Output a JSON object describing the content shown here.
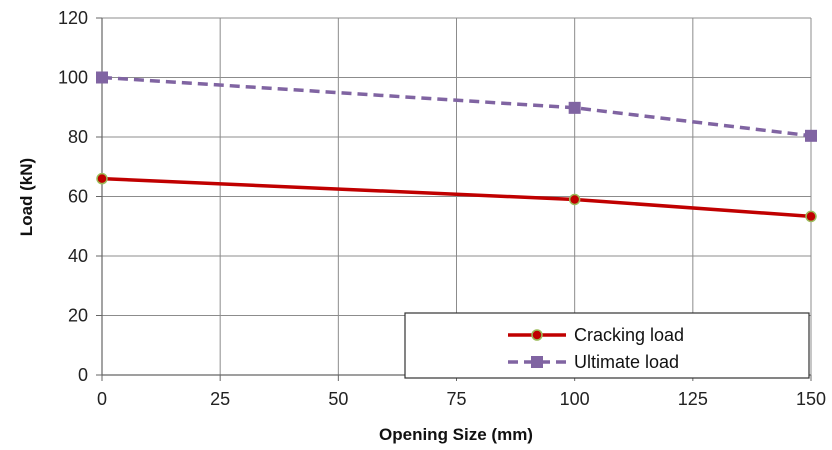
{
  "chart_data": {
    "type": "line",
    "title": "",
    "xlabel": "Opening Size (mm)",
    "ylabel": "Load (kN)",
    "xlim": [
      0,
      150
    ],
    "ylim": [
      0,
      120
    ],
    "x_ticks": [
      "0",
      "25",
      "50",
      "75",
      "100",
      "125",
      "150"
    ],
    "y_ticks": [
      "0",
      "20",
      "40",
      "60",
      "80",
      "100",
      "120"
    ],
    "grid": true,
    "legend_position": "bottom-right",
    "series": [
      {
        "name": "Cracking load",
        "color": "#c00000",
        "marker_fill": "#c00000",
        "marker_edge": "#9bbb59",
        "style": "solid",
        "marker": "circle",
        "points": [
          {
            "x": 0,
            "y": 66
          },
          {
            "x": 100,
            "y": 59
          },
          {
            "x": 150,
            "y": 53.3
          }
        ]
      },
      {
        "name": "Ultimate load",
        "color": "#8064a2",
        "marker_fill": "#8064a2",
        "style": "dashed",
        "marker": "square",
        "points": [
          {
            "x": 0,
            "y": 100
          },
          {
            "x": 100,
            "y": 89.8
          },
          {
            "x": 150,
            "y": 80.4
          }
        ]
      }
    ]
  }
}
